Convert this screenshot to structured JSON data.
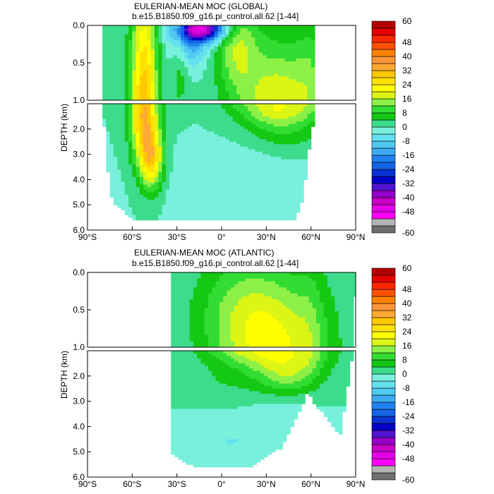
{
  "chart_data": [
    {
      "type": "heatmap",
      "title": "EULERIAN-MEAN MOC (GLOBAL)",
      "subtitle": "b.e15.B1850.f09_g16.pi_control.all.62 [1-44]",
      "ylabel": "DEPTH (km)",
      "xlabel": "",
      "x_ticks": [
        "90°S",
        "60°S",
        "30°S",
        "0°",
        "30°N",
        "60°N",
        "90°N"
      ],
      "x_tick_values": [
        -90,
        -60,
        -30,
        0,
        30,
        60,
        90
      ],
      "y_ticks": [
        "0.0",
        "0.5",
        "1.0",
        "2.0",
        "3.0",
        "4.0",
        "5.0",
        "6.0"
      ],
      "y_tick_values": [
        0,
        0.5,
        1.0,
        2.0,
        3.0,
        4.0,
        5.0,
        6.0
      ],
      "xlim": [
        -90,
        90
      ],
      "ylim": [
        6.0,
        0.0
      ],
      "y_break": 1.0,
      "domain": {
        "lat_min": -80,
        "lat_max": 62,
        "bottom": [
          [
            -80,
            1.0
          ],
          [
            -75,
            4.6
          ],
          [
            -70,
            5.0
          ],
          [
            -60,
            5.5
          ],
          [
            -30,
            5.5
          ],
          [
            0,
            5.5
          ],
          [
            30,
            5.5
          ],
          [
            50,
            5.5
          ],
          [
            55,
            4.6
          ],
          [
            58,
            3.0
          ],
          [
            62,
            1.6
          ],
          [
            70,
            1.4
          ],
          [
            75,
            1.2
          ],
          [
            80,
            1.0
          ],
          [
            88,
            0.6
          ]
        ]
      },
      "features": [
        {
          "name": "southern-upwelling-cell",
          "center": [
            -52,
            1.2
          ],
          "peak": 32
        },
        {
          "name": "deacon-cell-surface",
          "center": [
            -8,
            0.05
          ],
          "peak": -44
        },
        {
          "name": "nh-overturning-cell",
          "center": [
            40,
            1.1
          ],
          "peak": 20
        },
        {
          "name": "abyssal-cell",
          "center": [
            10,
            4.2
          ],
          "peak": -4
        }
      ]
    },
    {
      "type": "heatmap",
      "title": "EULERIAN-MEAN MOC (ATLANTIC)",
      "subtitle": "b.e15.B1850.f09_g16.pi_control.all.62 [1-44]",
      "ylabel": "DEPTH (km)",
      "xlabel": "",
      "x_ticks": [
        "90°S",
        "60°S",
        "30°S",
        "0°",
        "30°N",
        "60°N",
        "90°N"
      ],
      "x_tick_values": [
        -90,
        -60,
        -30,
        0,
        30,
        60,
        90
      ],
      "y_ticks": [
        "0.0",
        "0.5",
        "1.0",
        "2.0",
        "3.0",
        "4.0",
        "5.0",
        "6.0"
      ],
      "y_tick_values": [
        0,
        0.5,
        1.0,
        2.0,
        3.0,
        4.0,
        5.0,
        6.0
      ],
      "xlim": [
        -90,
        90
      ],
      "ylim": [
        6.0,
        0.0
      ],
      "y_break": 1.0,
      "domain": {
        "lat_min": -34,
        "lat_max": 90,
        "bottom": [
          [
            -34,
            5.0
          ],
          [
            -20,
            5.5
          ],
          [
            0,
            5.5
          ],
          [
            20,
            5.5
          ],
          [
            40,
            4.8
          ],
          [
            50,
            3.6
          ],
          [
            58,
            2.6
          ],
          [
            62,
            3.0
          ],
          [
            70,
            3.6
          ],
          [
            80,
            4.3
          ],
          [
            90,
            0.2
          ]
        ]
      },
      "features": [
        {
          "name": "amoc-upper-cell",
          "center": [
            35,
            0.9
          ],
          "peak": 20
        },
        {
          "name": "aabw-cell",
          "center": [
            5,
            4.6
          ],
          "peak": -4
        }
      ]
    }
  ],
  "colorbar": {
    "levels": [
      -60,
      -56,
      -52,
      -48,
      -44,
      -40,
      -36,
      -32,
      -28,
      -24,
      -20,
      -16,
      -12,
      -8,
      -4,
      0,
      4,
      8,
      12,
      16,
      20,
      24,
      28,
      32,
      36,
      40,
      44,
      48,
      52,
      56,
      60
    ],
    "labels": [
      "60",
      "48",
      "40",
      "32",
      "24",
      "16",
      "8",
      "0",
      "-8",
      "-16",
      "-24",
      "-32",
      "-40",
      "-48",
      "-60"
    ],
    "label_values": [
      60,
      48,
      40,
      32,
      24,
      16,
      8,
      0,
      -8,
      -16,
      -24,
      -32,
      -40,
      -48,
      -60
    ],
    "colors": [
      "#6e6e6e",
      "#b4b4b4",
      "#ff00ff",
      "#e600e6",
      "#c800c8",
      "#9600c8",
      "#5014d2",
      "#0000c8",
      "#0a32d2",
      "#1464e6",
      "#1e82f0",
      "#3caaf0",
      "#50c8f0",
      "#64e1f0",
      "#78f0dc",
      "#3cdc8c",
      "#14c814",
      "#32dc32",
      "#8cf046",
      "#dcf514",
      "#ffff00",
      "#ffe100",
      "#ffc800",
      "#ffaa32",
      "#ff963c",
      "#ff8200",
      "#ff5000",
      "#ff2800",
      "#e60000",
      "#b40000"
    ]
  }
}
